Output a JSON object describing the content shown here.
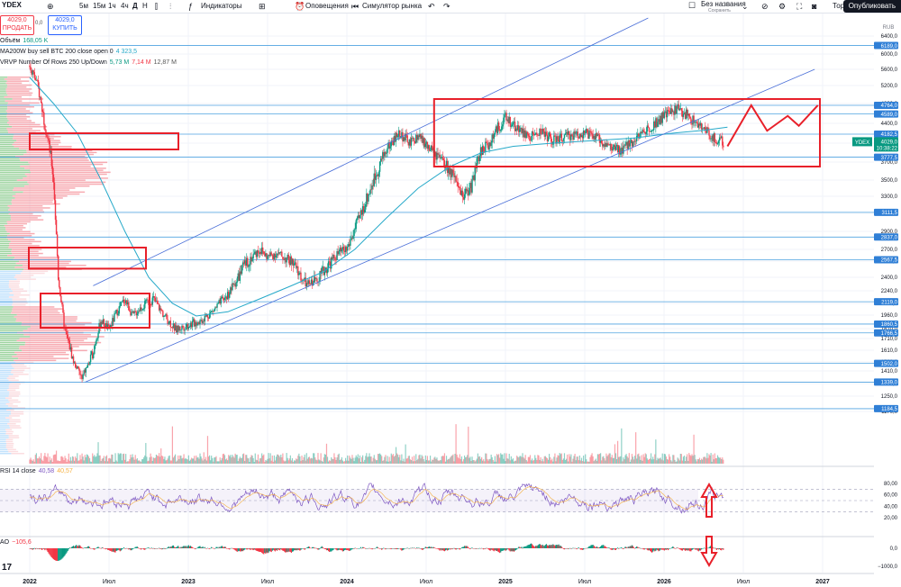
{
  "toolbar": {
    "symbol": "YDEX",
    "intervals": [
      "5м",
      "15м",
      "1ч",
      "4ч",
      "Д",
      "Н"
    ],
    "indicators_label": "Индикаторы",
    "alerts_label": "Оповещения",
    "replay_label": "Симулятор рынка",
    "layout_name": "Без названия",
    "layout_status": "Сохранить",
    "trade_label": "Торговать",
    "publish_label": "Опубликовать"
  },
  "trade": {
    "sell_price": "4029,0",
    "sell_label": "ПРОДАТЬ",
    "spread": "0,0",
    "buy_price": "4029,0",
    "buy_label": "КУПИТЬ"
  },
  "legends": {
    "volume": {
      "label": "Объём",
      "value": "168,05 K"
    },
    "ma": {
      "label": "MA200W buy sell BTC 200 close open 0",
      "value": "4 323,5"
    },
    "vrvp": {
      "label": "VRVP Number Of Rows 250 Up/Down",
      "v1": "5,73 M",
      "v2": "7,14 M",
      "v3": "12,87 M"
    },
    "rsi": {
      "label": "RSI 14 close",
      "v1": "40,58",
      "v2": "40,57"
    },
    "ao": {
      "label": "AO",
      "value": "−105,6"
    }
  },
  "colors": {
    "up": "#089981",
    "down": "#f23645",
    "ma": "#26a9c9",
    "channel": "#4a6fd8",
    "box": "#e8202a",
    "hline": "#4fa3e0",
    "rsi": "#7e57c2",
    "rsi_ma": "#f5b040"
  },
  "chart_data": {
    "type": "candlestick",
    "currency_label": "RUB",
    "price_ticks": [
      "6400,0",
      "6000,0",
      "5600,0",
      "5200,0",
      "4800,0",
      "4400,0",
      "4000,0",
      "3700,0",
      "3500,0",
      "3300,0",
      "3100,0",
      "2900,0",
      "2700,0",
      "2550,0",
      "2400,0",
      "2240,0",
      "2100,0",
      "1960,0",
      "1810,0",
      "1710,0",
      "1610,0",
      "1520,0",
      "1410,0",
      "1330,0",
      "1250,0",
      "1170,0"
    ],
    "time_ticks": [
      "2022",
      "Июл",
      "2023",
      "Июл",
      "2024",
      "Июл",
      "2025",
      "Июл",
      "2026",
      "Июл",
      "2027"
    ],
    "level_labels": [
      "6189,0",
      "4764,0",
      "4589,0",
      "4182,5",
      "3777,5",
      "3111,5",
      "2837,0",
      "2567,5",
      "2119,0",
      "1860,5",
      "1766,5",
      "1502,0",
      "1339,0",
      "1184,5"
    ],
    "current_price": {
      "symbol": "YDEX",
      "price": "4029,0",
      "countdown": "10:38:22"
    },
    "rsi_ticks": [
      "80,00",
      "60,00",
      "40,00",
      "20,00"
    ],
    "ao_ticks": [
      "0,0",
      "−1000,0"
    ],
    "price_path": [
      [
        2022.0,
        5700
      ],
      [
        2022.05,
        5200
      ],
      [
        2022.1,
        4300
      ],
      [
        2022.15,
        3500
      ],
      [
        2022.18,
        2400
      ],
      [
        2022.22,
        1800
      ],
      [
        2022.28,
        1500
      ],
      [
        2022.33,
        1350
      ],
      [
        2022.4,
        1600
      ],
      [
        2022.45,
        1900
      ],
      [
        2022.5,
        1800
      ],
      [
        2022.55,
        2000
      ],
      [
        2022.6,
        2150
      ],
      [
        2022.65,
        1950
      ],
      [
        2022.7,
        2050
      ],
      [
        2022.78,
        2150
      ],
      [
        2022.85,
        1950
      ],
      [
        2022.92,
        1800
      ],
      [
        2023.0,
        1850
      ],
      [
        2023.08,
        1900
      ],
      [
        2023.15,
        2000
      ],
      [
        2023.25,
        2200
      ],
      [
        2023.35,
        2500
      ],
      [
        2023.45,
        2700
      ],
      [
        2023.5,
        2600
      ],
      [
        2023.55,
        2650
      ],
      [
        2023.65,
        2550
      ],
      [
        2023.75,
        2300
      ],
      [
        2023.85,
        2450
      ],
      [
        2023.95,
        2650
      ],
      [
        2024.0,
        2700
      ],
      [
        2024.08,
        3050
      ],
      [
        2024.15,
        3400
      ],
      [
        2024.25,
        3900
      ],
      [
        2024.33,
        4200
      ],
      [
        2024.4,
        4000
      ],
      [
        2024.45,
        4150
      ],
      [
        2024.52,
        3900
      ],
      [
        2024.58,
        3750
      ],
      [
        2024.65,
        3600
      ],
      [
        2024.72,
        3300
      ],
      [
        2024.78,
        3400
      ],
      [
        2024.85,
        3900
      ],
      [
        2024.9,
        4000
      ],
      [
        2024.95,
        4300
      ],
      [
        2025.0,
        4500
      ],
      [
        2025.08,
        4300
      ],
      [
        2025.15,
        4100
      ],
      [
        2025.22,
        4250
      ],
      [
        2025.3,
        4050
      ],
      [
        2025.4,
        4150
      ],
      [
        2025.5,
        4200
      ],
      [
        2025.58,
        4100
      ],
      [
        2025.65,
        3950
      ],
      [
        2025.72,
        3850
      ],
      [
        2025.8,
        4050
      ],
      [
        2025.9,
        4300
      ],
      [
        2026.0,
        4550
      ],
      [
        2026.08,
        4700
      ],
      [
        2026.15,
        4550
      ],
      [
        2026.22,
        4350
      ],
      [
        2026.28,
        4200
      ],
      [
        2026.33,
        4050
      ],
      [
        2026.38,
        4029
      ]
    ],
    "ma_path": [
      [
        2022.0,
        5400
      ],
      [
        2022.15,
        4800
      ],
      [
        2022.3,
        4200
      ],
      [
        2022.45,
        3500
      ],
      [
        2022.6,
        2900
      ],
      [
        2022.75,
        2400
      ],
      [
        2022.9,
        2100
      ],
      [
        2023.05,
        1950
      ],
      [
        2023.25,
        2000
      ],
      [
        2023.45,
        2150
      ],
      [
        2023.65,
        2300
      ],
      [
        2023.85,
        2450
      ],
      [
        2024.05,
        2700
      ],
      [
        2024.25,
        3050
      ],
      [
        2024.45,
        3400
      ],
      [
        2024.65,
        3650
      ],
      [
        2024.85,
        3850
      ],
      [
        2025.05,
        3950
      ],
      [
        2025.3,
        4000
      ],
      [
        2025.55,
        4050
      ],
      [
        2025.8,
        4100
      ],
      [
        2026.05,
        4200
      ],
      [
        2026.25,
        4260
      ],
      [
        2026.4,
        4323
      ]
    ],
    "forecast_path": [
      [
        2026.4,
        3950
      ],
      [
        2026.55,
        4764
      ],
      [
        2026.65,
        4250
      ],
      [
        2026.78,
        4550
      ],
      [
        2026.85,
        4350
      ],
      [
        2026.97,
        4764
      ]
    ],
    "channel_upper": [
      [
        2022.4,
        2300
      ],
      [
        2025.9,
        6800
      ]
    ],
    "channel_lower": [
      [
        2022.35,
        1339
      ],
      [
        2026.95,
        5600
      ]
    ],
    "volume_profile_boxes": [
      {
        "price_top": 4200,
        "price_bottom": 3900
      },
      {
        "price_top": 2720,
        "price_bottom": 2480
      },
      {
        "price_top": 2210,
        "price_bottom": 1820
      }
    ],
    "range_box": {
      "date_from": 2024.55,
      "date_to": 2027.0,
      "price_top": 4900,
      "price_bottom": 3650
    },
    "arrows": {
      "rsi": "up",
      "ao": "down"
    }
  }
}
